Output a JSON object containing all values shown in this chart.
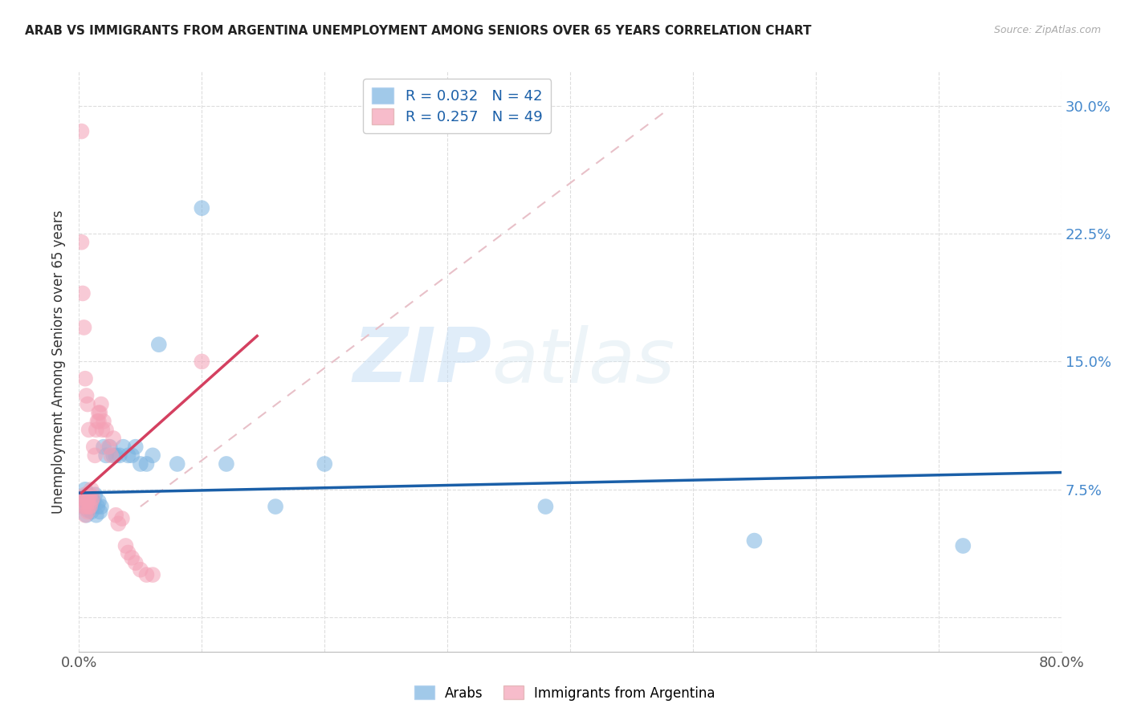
{
  "title": "ARAB VS IMMIGRANTS FROM ARGENTINA UNEMPLOYMENT AMONG SENIORS OVER 65 YEARS CORRELATION CHART",
  "source": "Source: ZipAtlas.com",
  "ylabel": "Unemployment Among Seniors over 65 years",
  "legend_labels": [
    "Arabs",
    "Immigrants from Argentina"
  ],
  "xlim": [
    0.0,
    0.8
  ],
  "ylim": [
    -0.02,
    0.32
  ],
  "color_arab": "#7ab3e0",
  "color_arg": "#f4a0b5",
  "watermark_zip": "ZIP",
  "watermark_atlas": "atlas",
  "arab_x": [
    0.003,
    0.004,
    0.005,
    0.005,
    0.006,
    0.007,
    0.007,
    0.008,
    0.008,
    0.009,
    0.01,
    0.01,
    0.011,
    0.012,
    0.013,
    0.014,
    0.015,
    0.016,
    0.017,
    0.018,
    0.02,
    0.022,
    0.025,
    0.028,
    0.03,
    0.033,
    0.036,
    0.04,
    0.043,
    0.046,
    0.05,
    0.055,
    0.06,
    0.065,
    0.08,
    0.1,
    0.12,
    0.16,
    0.2,
    0.38,
    0.55,
    0.72
  ],
  "arab_y": [
    0.07,
    0.065,
    0.068,
    0.075,
    0.06,
    0.063,
    0.072,
    0.065,
    0.07,
    0.068,
    0.062,
    0.07,
    0.065,
    0.068,
    0.072,
    0.06,
    0.065,
    0.068,
    0.062,
    0.065,
    0.1,
    0.095,
    0.1,
    0.095,
    0.095,
    0.095,
    0.1,
    0.095,
    0.095,
    0.1,
    0.09,
    0.09,
    0.095,
    0.16,
    0.09,
    0.24,
    0.09,
    0.065,
    0.09,
    0.065,
    0.045,
    0.042
  ],
  "arg_x": [
    0.003,
    0.004,
    0.004,
    0.005,
    0.005,
    0.006,
    0.006,
    0.007,
    0.007,
    0.008,
    0.008,
    0.009,
    0.009,
    0.01,
    0.01,
    0.011,
    0.012,
    0.013,
    0.014,
    0.015,
    0.016,
    0.016,
    0.017,
    0.018,
    0.019,
    0.02,
    0.022,
    0.024,
    0.026,
    0.028,
    0.03,
    0.032,
    0.035,
    0.038,
    0.04,
    0.043,
    0.046,
    0.05,
    0.055,
    0.06,
    0.002,
    0.002,
    0.003,
    0.004,
    0.005,
    0.006,
    0.007,
    0.008,
    0.1
  ],
  "arg_y": [
    0.07,
    0.065,
    0.068,
    0.06,
    0.072,
    0.065,
    0.07,
    0.062,
    0.068,
    0.065,
    0.07,
    0.065,
    0.072,
    0.068,
    0.075,
    0.07,
    0.1,
    0.095,
    0.11,
    0.115,
    0.12,
    0.115,
    0.12,
    0.125,
    0.11,
    0.115,
    0.11,
    0.1,
    0.095,
    0.105,
    0.06,
    0.055,
    0.058,
    0.042,
    0.038,
    0.035,
    0.032,
    0.028,
    0.025,
    0.025,
    0.285,
    0.22,
    0.19,
    0.17,
    0.14,
    0.13,
    0.125,
    0.11,
    0.15
  ],
  "arab_trend_x": [
    0.0,
    0.8
  ],
  "arab_trend_y": [
    0.073,
    0.085
  ],
  "arg_trend_x": [
    0.002,
    0.145
  ],
  "arg_trend_y": [
    0.073,
    0.165
  ],
  "ref_line_x": [
    0.05,
    0.48
  ],
  "ref_line_y": [
    0.065,
    0.298
  ]
}
